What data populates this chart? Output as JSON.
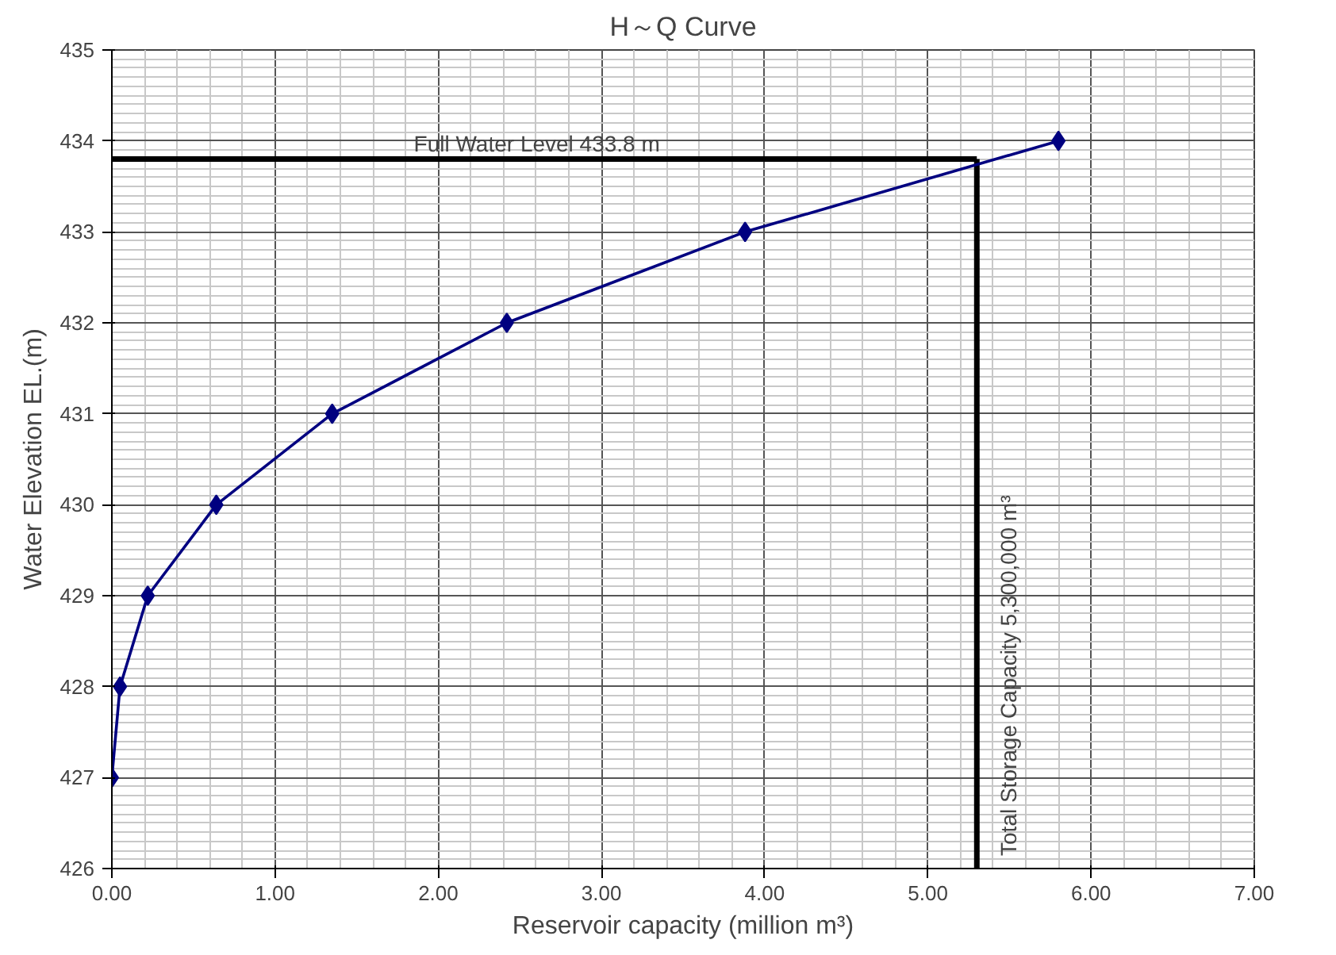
{
  "chart_data": {
    "type": "line",
    "title": "H～Q Curve",
    "xlabel": "Reservoir capacity (million m³)",
    "ylabel": "Water Elevation EL.(m)",
    "x": [
      0.0,
      0.05,
      0.22,
      0.64,
      1.35,
      2.42,
      3.88,
      5.8
    ],
    "series": [
      {
        "color": "#000080",
        "values": [
          427,
          428,
          429,
          430,
          431,
          432,
          433,
          434
        ]
      }
    ],
    "marker": "diamond",
    "line_style": "solid",
    "grid": true,
    "xlim": [
      0,
      7
    ],
    "ylim": [
      426,
      435
    ],
    "xticks": [
      {
        "value": 0,
        "label": "0.00"
      },
      {
        "value": 1,
        "label": "1.00"
      },
      {
        "value": 2,
        "label": "2.00"
      },
      {
        "value": 3,
        "label": "3.00"
      },
      {
        "value": 4,
        "label": "4.00"
      },
      {
        "value": 5,
        "label": "5.00"
      },
      {
        "value": 6,
        "label": "6.00"
      },
      {
        "value": 7,
        "label": "7.00"
      }
    ],
    "yticks": [
      426,
      427,
      428,
      429,
      430,
      431,
      432,
      433,
      434,
      435
    ],
    "ref_lines": [
      {
        "axis": "y",
        "value": 433.8,
        "label": "Full Water Level 433.8 m",
        "color": "#000000"
      },
      {
        "axis": "x",
        "value": 5.3,
        "label": "Total Storage Capacity 5,300,000 m³",
        "color": "#000000"
      }
    ]
  }
}
